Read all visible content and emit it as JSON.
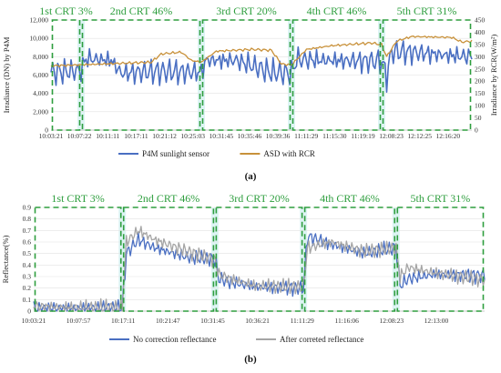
{
  "chart_data": [
    {
      "type": "line",
      "panel_label": "(a)",
      "ylabel": "Irradiance (DN) by P4M",
      "y2label": "Irradiance by RCR(W/m²)",
      "ylim": [
        0,
        12000
      ],
      "y2lim": [
        0,
        450
      ],
      "yticks": [
        "0",
        "2,000",
        "4,000",
        "6,000",
        "8,000",
        "10,000",
        "12,000"
      ],
      "y2ticks": [
        "0",
        "50",
        "100",
        "150",
        "200",
        "250",
        "300",
        "350",
        "400",
        "450"
      ],
      "xticks": [
        "10:03:21",
        "10:07:22",
        "10:11:11",
        "10:17:11",
        "10:21:12",
        "10:25:03",
        "10:31:45",
        "10:35:46",
        "10:39:36",
        "11:11:29",
        "11:15:30",
        "11:19:19",
        "12:08:23",
        "12:12:25",
        "12:16:20"
      ],
      "segments": [
        {
          "label": "1st CRT 3%",
          "x": [
            0,
            6
          ]
        },
        {
          "label": "2nd CRT 46%",
          "x": [
            6,
            30
          ]
        },
        {
          "label": "3rd CRT 20%",
          "x": [
            30,
            48
          ]
        },
        {
          "label": "4th CRT 46%",
          "x": [
            48,
            66
          ]
        },
        {
          "label": "5th CRT 31%",
          "x": [
            66,
            84
          ]
        }
      ],
      "x_range": [
        0,
        84
      ],
      "legend": "bottom",
      "series": [
        {
          "name": "P4M sunlight sensor",
          "color": "#4a6fc2",
          "anchors": [
            [
              0,
              6300
            ],
            [
              6,
              6500
            ],
            [
              7,
              7800
            ],
            [
              12,
              7600
            ],
            [
              14,
              6200
            ],
            [
              21,
              6400
            ],
            [
              30,
              6300
            ],
            [
              31,
              7600
            ],
            [
              37,
              7600
            ],
            [
              44,
              6300
            ],
            [
              48,
              6200
            ],
            [
              49,
              7700
            ],
            [
              55,
              7600
            ],
            [
              66,
              7500
            ],
            [
              67,
              5800
            ],
            [
              68,
              8600
            ],
            [
              74,
              8400
            ],
            [
              78,
              8200
            ],
            [
              84,
              8000
            ]
          ],
          "amp": 1500
        },
        {
          "name": "ASD with RCR",
          "color": "#c8913a",
          "anchors": [
            [
              0,
              7000
            ],
            [
              20,
              7400
            ],
            [
              22,
              8300
            ],
            [
              26,
              8500
            ],
            [
              28,
              7600
            ],
            [
              30,
              7400
            ],
            [
              33,
              8600
            ],
            [
              40,
              8800
            ],
            [
              44,
              8700
            ],
            [
              46,
              7200
            ],
            [
              48,
              7100
            ],
            [
              51,
              8800
            ],
            [
              56,
              9200
            ],
            [
              64,
              9500
            ],
            [
              66,
              9300
            ],
            [
              67,
              8000
            ],
            [
              69,
              9700
            ],
            [
              72,
              10200
            ],
            [
              80,
              10100
            ],
            [
              82,
              9600
            ],
            [
              84,
              9700
            ]
          ],
          "amp": 150
        }
      ]
    },
    {
      "type": "line",
      "panel_label": "(b)",
      "ylabel": "Reflectance(%)",
      "ylim": [
        0,
        0.9
      ],
      "yticks": [
        "0",
        "0.1",
        "0.2",
        "0.3",
        "0.4",
        "0.5",
        "0.6",
        "0.7",
        "0.8",
        "0.9"
      ],
      "xticks": [
        "10:03:21",
        "10:07:57",
        "10:17:11",
        "10:21:47",
        "10:31:45",
        "10:36:21",
        "11:11:29",
        "11:16:06",
        "12:08:23",
        "12:13:00"
      ],
      "segments": [
        {
          "label": "1st CRT 3%",
          "x": [
            0,
            22
          ]
        },
        {
          "label": "2nd CRT 46%",
          "x": [
            22,
            45
          ]
        },
        {
          "label": "3rd CRT 20%",
          "x": [
            45,
            67
          ]
        },
        {
          "label": "4th CRT 46%",
          "x": [
            67,
            90
          ]
        },
        {
          "label": "5th CRT 31%",
          "x": [
            90,
            112
          ]
        }
      ],
      "x_range": [
        0,
        112
      ],
      "legend": "bottom",
      "series": [
        {
          "name": "No correction reflectance",
          "color": "#4a6fc2",
          "anchors": [
            [
              0,
              0.02
            ],
            [
              22,
              0.03
            ],
            [
              23,
              0.5
            ],
            [
              26,
              0.62
            ],
            [
              30,
              0.55
            ],
            [
              38,
              0.47
            ],
            [
              45,
              0.45
            ],
            [
              46,
              0.28
            ],
            [
              49,
              0.25
            ],
            [
              55,
              0.21
            ],
            [
              67,
              0.2
            ],
            [
              68,
              0.65
            ],
            [
              74,
              0.58
            ],
            [
              82,
              0.5
            ],
            [
              90,
              0.55
            ],
            [
              91,
              0.22
            ],
            [
              93,
              0.28
            ],
            [
              100,
              0.32
            ],
            [
              112,
              0.31
            ]
          ],
          "amp": 0.07
        },
        {
          "name": "After correted reflectance",
          "color": "#a5a5a5",
          "anchors": [
            [
              0,
              0.04
            ],
            [
              22,
              0.03
            ],
            [
              23,
              0.6
            ],
            [
              26,
              0.7
            ],
            [
              30,
              0.62
            ],
            [
              38,
              0.52
            ],
            [
              45,
              0.45
            ],
            [
              46,
              0.32
            ],
            [
              49,
              0.28
            ],
            [
              55,
              0.22
            ],
            [
              67,
              0.21
            ],
            [
              68,
              0.55
            ],
            [
              74,
              0.6
            ],
            [
              82,
              0.52
            ],
            [
              90,
              0.55
            ],
            [
              91,
              0.3
            ],
            [
              93,
              0.38
            ],
            [
              100,
              0.33
            ],
            [
              112,
              0.27
            ]
          ],
          "amp": 0.07
        }
      ]
    }
  ]
}
